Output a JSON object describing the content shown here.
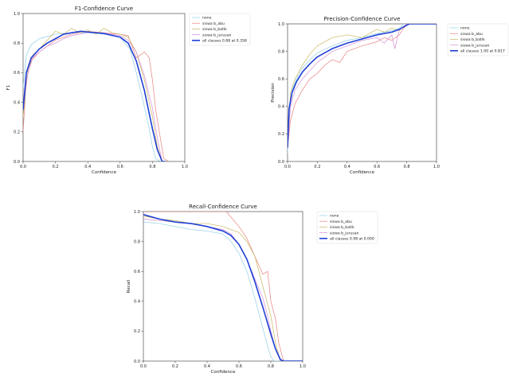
{
  "colors": {
    "none": "#8ecfe8",
    "siswa_b_abu": "#e8827f",
    "siswa_b_batik": "#c9b75f",
    "siswa_b_jurusan": "#d08fd6",
    "all": "#1f3fd6"
  },
  "chart_data": [
    {
      "type": "line",
      "title": "F1-Confidence Curve",
      "xlabel": "Confidence",
      "ylabel": "F1",
      "xlim": [
        0,
        1
      ],
      "ylim": [
        0,
        1
      ],
      "xticks": [
        "0.0",
        "0.2",
        "0.4",
        "0.6",
        "0.8",
        "1.0"
      ],
      "yticks": [
        "0.0",
        "0.2",
        "0.4",
        "0.6",
        "0.8",
        "1.0"
      ],
      "grid": false,
      "legend": "top-right",
      "series": [
        {
          "name": "none",
          "color_key": "none",
          "width": 0.7,
          "x": [
            0.0,
            0.02,
            0.05,
            0.1,
            0.2,
            0.3,
            0.4,
            0.5,
            0.6,
            0.66,
            0.7,
            0.74,
            0.78,
            0.8,
            0.82,
            0.85
          ],
          "y": [
            0.5,
            0.72,
            0.79,
            0.83,
            0.86,
            0.87,
            0.87,
            0.86,
            0.84,
            0.76,
            0.6,
            0.42,
            0.22,
            0.1,
            0.02,
            0.0
          ]
        },
        {
          "name": "siswa b_abu",
          "color_key": "siswa_b_abu",
          "width": 0.7,
          "x": [
            0.0,
            0.02,
            0.05,
            0.1,
            0.15,
            0.2,
            0.3,
            0.4,
            0.5,
            0.6,
            0.65,
            0.7,
            0.75,
            0.78,
            0.8,
            0.82,
            0.85,
            0.87,
            0.9
          ],
          "y": [
            0.2,
            0.55,
            0.68,
            0.74,
            0.78,
            0.82,
            0.86,
            0.88,
            0.87,
            0.86,
            0.85,
            0.7,
            0.74,
            0.7,
            0.55,
            0.35,
            0.15,
            0.02,
            0.0
          ]
        },
        {
          "name": "siswa b_batik",
          "color_key": "siswa_b_batik",
          "width": 0.7,
          "x": [
            0.0,
            0.03,
            0.06,
            0.1,
            0.15,
            0.2,
            0.25,
            0.3,
            0.35,
            0.4,
            0.45,
            0.5,
            0.55,
            0.6,
            0.65,
            0.7,
            0.75,
            0.8,
            0.83,
            0.86
          ],
          "y": [
            0.3,
            0.62,
            0.72,
            0.76,
            0.82,
            0.88,
            0.86,
            0.9,
            0.87,
            0.89,
            0.86,
            0.9,
            0.87,
            0.86,
            0.84,
            0.74,
            0.55,
            0.3,
            0.1,
            0.0
          ]
        },
        {
          "name": "siswa b_jurusan",
          "color_key": "siswa_b_jurusan",
          "width": 0.7,
          "x": [
            0.0,
            0.03,
            0.06,
            0.1,
            0.15,
            0.2,
            0.25,
            0.3,
            0.4,
            0.5,
            0.6,
            0.65,
            0.7,
            0.75,
            0.8,
            0.83,
            0.86
          ],
          "y": [
            0.35,
            0.6,
            0.7,
            0.74,
            0.78,
            0.8,
            0.83,
            0.85,
            0.87,
            0.87,
            0.85,
            0.82,
            0.74,
            0.58,
            0.36,
            0.16,
            0.0
          ]
        },
        {
          "name": "all classes 0.88 at 0.358",
          "color_key": "all",
          "width": 1.6,
          "x": [
            0.0,
            0.02,
            0.05,
            0.1,
            0.15,
            0.2,
            0.25,
            0.3,
            0.358,
            0.4,
            0.5,
            0.6,
            0.65,
            0.7,
            0.75,
            0.8,
            0.83,
            0.86,
            0.88
          ],
          "y": [
            0.35,
            0.6,
            0.7,
            0.76,
            0.8,
            0.83,
            0.86,
            0.87,
            0.88,
            0.875,
            0.865,
            0.84,
            0.8,
            0.68,
            0.48,
            0.22,
            0.08,
            0.0,
            0.0
          ]
        }
      ]
    },
    {
      "type": "line",
      "title": "Precision-Confidence Curve",
      "xlabel": "Confidence",
      "ylabel": "Precision",
      "xlim": [
        0,
        1
      ],
      "ylim": [
        0,
        1
      ],
      "xticks": [
        "0.0",
        "0.2",
        "0.4",
        "0.6",
        "0.8",
        "1.0"
      ],
      "yticks": [
        "0.0",
        "0.2",
        "0.4",
        "0.6",
        "0.8",
        "1.0"
      ],
      "grid": false,
      "legend": "top-right",
      "series": [
        {
          "name": "none",
          "color_key": "none",
          "width": 0.7,
          "x": [
            0.0,
            0.01,
            0.03,
            0.06,
            0.1,
            0.15,
            0.2,
            0.3,
            0.4,
            0.5,
            0.6,
            0.7,
            0.75,
            0.78,
            0.8,
            1.0
          ],
          "y": [
            0.05,
            0.4,
            0.52,
            0.6,
            0.68,
            0.74,
            0.79,
            0.84,
            0.88,
            0.9,
            0.93,
            0.95,
            0.97,
            1.0,
            1.0,
            1.0
          ]
        },
        {
          "name": "siswa b_abu",
          "color_key": "siswa_b_abu",
          "width": 0.7,
          "x": [
            0.0,
            0.02,
            0.05,
            0.1,
            0.15,
            0.2,
            0.25,
            0.3,
            0.35,
            0.4,
            0.5,
            0.6,
            0.65,
            0.7,
            0.75,
            0.8,
            1.0
          ],
          "y": [
            0.1,
            0.3,
            0.42,
            0.52,
            0.6,
            0.64,
            0.7,
            0.74,
            0.72,
            0.8,
            0.84,
            0.87,
            0.9,
            0.88,
            0.92,
            1.0,
            1.0
          ]
        },
        {
          "name": "siswa b_batik",
          "color_key": "siswa_b_batik",
          "width": 0.7,
          "x": [
            0.0,
            0.02,
            0.05,
            0.1,
            0.15,
            0.2,
            0.3,
            0.4,
            0.5,
            0.6,
            0.65,
            0.7,
            0.75,
            0.8,
            1.0
          ],
          "y": [
            0.15,
            0.5,
            0.6,
            0.7,
            0.78,
            0.84,
            0.9,
            0.92,
            0.9,
            0.96,
            0.94,
            0.97,
            0.95,
            1.0,
            1.0
          ]
        },
        {
          "name": "siswa b_jurusan",
          "color_key": "siswa_b_jurusan",
          "width": 0.7,
          "x": [
            0.0,
            0.02,
            0.05,
            0.1,
            0.15,
            0.2,
            0.3,
            0.4,
            0.5,
            0.6,
            0.65,
            0.7,
            0.72,
            0.75,
            0.8,
            1.0
          ],
          "y": [
            0.1,
            0.4,
            0.52,
            0.6,
            0.66,
            0.72,
            0.8,
            0.84,
            0.88,
            0.9,
            0.86,
            0.92,
            0.82,
            0.96,
            1.0,
            1.0
          ]
        },
        {
          "name": "all classes 1.00 at 0.817",
          "color_key": "all",
          "width": 1.6,
          "x": [
            0.0,
            0.01,
            0.03,
            0.06,
            0.1,
            0.15,
            0.2,
            0.3,
            0.4,
            0.5,
            0.6,
            0.7,
            0.75,
            0.8,
            0.817,
            1.0
          ],
          "y": [
            0.1,
            0.38,
            0.5,
            0.58,
            0.65,
            0.71,
            0.76,
            0.82,
            0.86,
            0.89,
            0.92,
            0.94,
            0.96,
            0.99,
            1.0,
            1.0
          ]
        }
      ]
    },
    {
      "type": "line",
      "title": "Recall-Confidence Curve",
      "xlabel": "Confidence",
      "ylabel": "Recall",
      "xlim": [
        0,
        1
      ],
      "ylim": [
        0,
        1
      ],
      "xticks": [
        "0.0",
        "0.2",
        "0.4",
        "0.6",
        "0.8",
        "1.0"
      ],
      "yticks": [
        "0.0",
        "0.2",
        "0.4",
        "0.6",
        "0.8",
        "1.0"
      ],
      "grid": false,
      "legend": "top-right",
      "series": [
        {
          "name": "none",
          "color_key": "none",
          "width": 0.7,
          "x": [
            0.0,
            0.1,
            0.2,
            0.3,
            0.4,
            0.5,
            0.55,
            0.6,
            0.65,
            0.7,
            0.75,
            0.78,
            0.8,
            0.82,
            1.0
          ],
          "y": [
            0.93,
            0.92,
            0.9,
            0.88,
            0.87,
            0.85,
            0.8,
            0.72,
            0.6,
            0.42,
            0.22,
            0.1,
            0.03,
            0.0,
            0.0
          ]
        },
        {
          "name": "siswa b_abu",
          "color_key": "siswa_b_abu",
          "width": 0.7,
          "x": [
            0.0,
            0.2,
            0.4,
            0.5,
            0.52,
            0.6,
            0.65,
            0.7,
            0.75,
            0.78,
            0.8,
            0.83,
            0.85,
            0.88,
            1.0
          ],
          "y": [
            1.0,
            1.0,
            1.0,
            1.0,
            1.0,
            0.9,
            0.82,
            0.7,
            0.58,
            0.6,
            0.4,
            0.28,
            0.12,
            0.0,
            0.0
          ]
        },
        {
          "name": "siswa b_batik",
          "color_key": "siswa_b_batik",
          "width": 0.7,
          "x": [
            0.0,
            0.1,
            0.2,
            0.3,
            0.4,
            0.5,
            0.55,
            0.6,
            0.65,
            0.7,
            0.75,
            0.8,
            0.83,
            0.86,
            1.0
          ],
          "y": [
            0.97,
            0.95,
            0.94,
            0.92,
            0.92,
            0.9,
            0.88,
            0.86,
            0.8,
            0.7,
            0.5,
            0.3,
            0.12,
            0.0,
            0.0
          ]
        },
        {
          "name": "siswa b_jurusan",
          "color_key": "siswa_b_jurusan",
          "width": 0.7,
          "x": [
            0.0,
            0.1,
            0.2,
            0.3,
            0.4,
            0.5,
            0.55,
            0.6,
            0.65,
            0.7,
            0.75,
            0.78,
            0.8,
            0.83,
            0.86,
            1.0
          ],
          "y": [
            0.95,
            0.94,
            0.93,
            0.92,
            0.9,
            0.88,
            0.85,
            0.78,
            0.68,
            0.55,
            0.42,
            0.3,
            0.2,
            0.08,
            0.0,
            0.0
          ]
        },
        {
          "name": "all classes 0.98 at 0.000",
          "color_key": "all",
          "width": 1.6,
          "x": [
            0.0,
            0.1,
            0.2,
            0.3,
            0.4,
            0.5,
            0.55,
            0.6,
            0.65,
            0.7,
            0.75,
            0.8,
            0.83,
            0.86,
            0.88,
            1.0
          ],
          "y": [
            0.98,
            0.95,
            0.93,
            0.92,
            0.9,
            0.87,
            0.84,
            0.78,
            0.68,
            0.53,
            0.36,
            0.18,
            0.08,
            0.01,
            0.0,
            0.0
          ]
        }
      ]
    }
  ]
}
